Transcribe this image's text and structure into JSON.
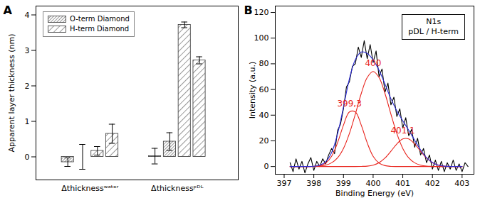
{
  "chart_data": [
    {
      "type": "bar",
      "title": "A",
      "categories": [
        "Δthicknessʷᵃᵗᵉʳ",
        "Δthicknessᵖᴰᴸ"
      ],
      "ylabel": "Apparent layer thickness (nm)",
      "ylim": [
        -0.65,
        4.25
      ],
      "yticks": [
        0,
        1,
        2,
        3,
        4
      ],
      "grid": false,
      "legend": "upper left",
      "series": [
        {
          "name": "O-term Diamond",
          "color": "#333333",
          "values": [
            [
              -0.15,
              0.0
            ],
            [
              0.02,
              0.43
            ]
          ],
          "errors": [
            [
              0.12,
              0.35
            ],
            [
              0.22,
              0.25
            ]
          ]
        },
        {
          "name": "H-term Diamond",
          "color": "#333333",
          "values": [
            [
              0.17,
              0.65
            ],
            [
              3.72,
              2.72
            ]
          ],
          "errors": [
            [
              0.12,
              0.27
            ],
            [
              0.08,
              0.1
            ]
          ]
        }
      ]
    },
    {
      "type": "line",
      "title": "B",
      "xlabel": "Binding Energy (eV)",
      "ylabel": "Intensity (a.u.)",
      "xlim": [
        396.7,
        403.4
      ],
      "xticks": [
        397,
        398,
        399,
        400,
        401,
        402,
        403
      ],
      "ylim": [
        -6,
        125
      ],
      "yticks": [
        0,
        20,
        40,
        60,
        80,
        100,
        120
      ],
      "grid": false,
      "annotations": [
        "N1s",
        "pDL / H-term"
      ],
      "series": [
        {
          "color": "#000000",
          "x": [
            397.2,
            397.3,
            397.4,
            397.5,
            397.6,
            397.7,
            397.8,
            397.9,
            398.0,
            398.1,
            398.2,
            398.3,
            398.4,
            398.5,
            398.6,
            398.7,
            398.8,
            398.9,
            399.0,
            399.1,
            399.2,
            399.3,
            399.4,
            399.5,
            399.6,
            399.7,
            399.8,
            399.9,
            400.0,
            400.1,
            400.2,
            400.3,
            400.4,
            400.5,
            400.6,
            400.7,
            400.8,
            400.9,
            401.0,
            401.1,
            401.2,
            401.3,
            401.4,
            401.5,
            401.6,
            401.7,
            401.8,
            401.9,
            402.0,
            402.1,
            402.2,
            402.3,
            402.4,
            402.5,
            402.6,
            402.7,
            402.8,
            402.9,
            403.0,
            403.1,
            403.2
          ],
          "values": [
            3,
            -4,
            6,
            -2,
            4,
            -5,
            2,
            7,
            -3,
            4,
            0,
            6,
            2,
            9,
            14,
            10,
            28,
            33,
            45,
            62,
            66,
            78,
            80,
            93,
            85,
            98,
            84,
            95,
            81,
            90,
            70,
            76,
            58,
            65,
            48,
            54,
            39,
            45,
            30,
            38,
            24,
            29,
            15,
            22,
            9,
            14,
            3,
            9,
            -2,
            5,
            -3,
            4,
            -4,
            3,
            -2,
            5,
            -3,
            2,
            -4,
            3,
            0
          ]
        },
        {
          "color": "#e8231c",
          "label": "399,3",
          "x": [
            397.2,
            397.4,
            397.6,
            397.8,
            398.0,
            398.2,
            398.4,
            398.6,
            398.8,
            399.0,
            399.2,
            399.4,
            399.6,
            399.8,
            400.0,
            400.2,
            400.4,
            400.6,
            400.8,
            401.0,
            401.2,
            401.4,
            401.6,
            401.8,
            402.0,
            402.2,
            402.4,
            402.6,
            402.8,
            403.0
          ],
          "values": [
            0,
            0,
            0,
            0,
            0.1,
            0.7,
            2.7,
            8.0,
            18.5,
            32.2,
            42.5,
            42.5,
            32.2,
            18.5,
            8.0,
            2.7,
            0.7,
            0.1,
            0,
            0,
            0,
            0,
            0,
            0,
            0,
            0,
            0,
            0,
            0,
            0
          ]
        },
        {
          "color": "#e8231c",
          "label": "400",
          "x": [
            397.2,
            397.4,
            397.6,
            397.8,
            398.0,
            398.2,
            398.4,
            398.6,
            398.8,
            399.0,
            399.2,
            399.4,
            399.6,
            399.8,
            400.0,
            400.2,
            400.4,
            400.6,
            400.8,
            401.0,
            401.2,
            401.4,
            401.6,
            401.8,
            402.0,
            402.2,
            402.4,
            402.6,
            402.8,
            403.0
          ],
          "values": [
            0,
            0,
            0,
            0,
            0.1,
            0.3,
            1.1,
            2.9,
            6.8,
            14.1,
            25.7,
            40.8,
            56.9,
            69.3,
            74.0,
            69.3,
            56.9,
            40.8,
            25.7,
            14.1,
            6.8,
            2.9,
            1.1,
            0.3,
            0.1,
            0,
            0,
            0,
            0,
            0
          ]
        },
        {
          "color": "#e8231c",
          "label": "401.1",
          "x": [
            397.2,
            397.4,
            397.6,
            397.8,
            398.0,
            398.2,
            398.4,
            398.6,
            398.8,
            399.0,
            399.2,
            399.4,
            399.6,
            399.8,
            400.0,
            400.2,
            400.4,
            400.6,
            400.8,
            401.0,
            401.2,
            401.4,
            401.6,
            401.8,
            402.0,
            402.2,
            402.4,
            402.6,
            402.8,
            403.0
          ],
          "values": [
            0,
            0,
            0,
            0,
            0,
            0,
            0,
            0,
            0,
            0,
            0,
            0,
            0.1,
            0.3,
            1.1,
            3.0,
            6.6,
            11.9,
            17.6,
            21.5,
            21.5,
            17.6,
            11.9,
            6.6,
            3.0,
            1.1,
            0.3,
            0.1,
            0,
            0
          ]
        },
        {
          "color": "#2b2bd6",
          "x": [
            397.2,
            397.4,
            397.6,
            397.8,
            398.0,
            398.2,
            398.4,
            398.6,
            398.8,
            399.0,
            399.2,
            399.4,
            399.6,
            399.8,
            400.0,
            400.2,
            400.4,
            400.6,
            400.8,
            401.0,
            401.2,
            401.4,
            401.6,
            401.8,
            402.0,
            402.2,
            402.4,
            402.6,
            402.8,
            403.0
          ],
          "values": [
            0,
            0,
            0,
            0,
            0.2,
            1.0,
            3.8,
            10.9,
            25.3,
            46.3,
            68.2,
            83.3,
            89.2,
            88.1,
            83.1,
            75.0,
            64.2,
            52.8,
            43.3,
            35.6,
            28.3,
            20.5,
            13.0,
            6.9,
            3.1,
            1.1,
            0.3,
            0.1,
            0,
            0
          ]
        }
      ]
    }
  ]
}
